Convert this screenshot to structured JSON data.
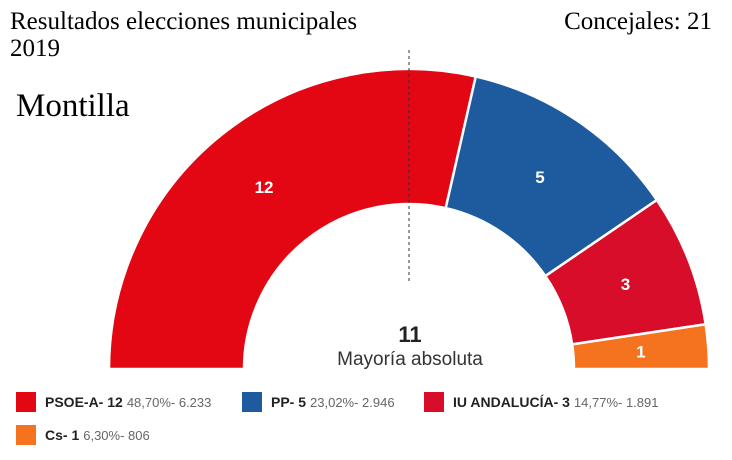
{
  "header": {
    "title_line1": "Resultados elecciones municipales",
    "title_line2": "2019",
    "councillors": "Concejales: 21",
    "town": "Montilla"
  },
  "majority": {
    "number": "11",
    "label": "Mayoría absoluta"
  },
  "chart_data": {
    "type": "pie",
    "subtype": "parliament-semicircle",
    "total_seats": 21,
    "series": [
      {
        "name": "PSOE-A",
        "seats": 12,
        "color": "#e30613",
        "pct": "48,70%",
        "votes": "6.233"
      },
      {
        "name": "PP",
        "seats": 5,
        "color": "#1d5a9e",
        "pct": "23,02%",
        "votes": "2.946"
      },
      {
        "name": "IU ANDALUCÍA",
        "seats": 3,
        "color": "#d70d2a",
        "pct": "14,77%",
        "votes": "1.891"
      },
      {
        "name": "Cs",
        "seats": 1,
        "color": "#f5731e",
        "pct": "6,30%",
        "votes": "806"
      }
    ]
  },
  "legend": [
    {
      "name": "PSOE-A- 12",
      "stats": "48,70%- 6.233",
      "color": "#e30613"
    },
    {
      "name": "PP- 5",
      "stats": "23,02%- 2.946",
      "color": "#1d5a9e"
    },
    {
      "name": "IU ANDALUCÍA- 3",
      "stats": "14,77%- 1.891",
      "color": "#d70d2a"
    },
    {
      "name": "Cs- 1",
      "stats": "6,30%- 806",
      "color": "#f5731e"
    }
  ]
}
